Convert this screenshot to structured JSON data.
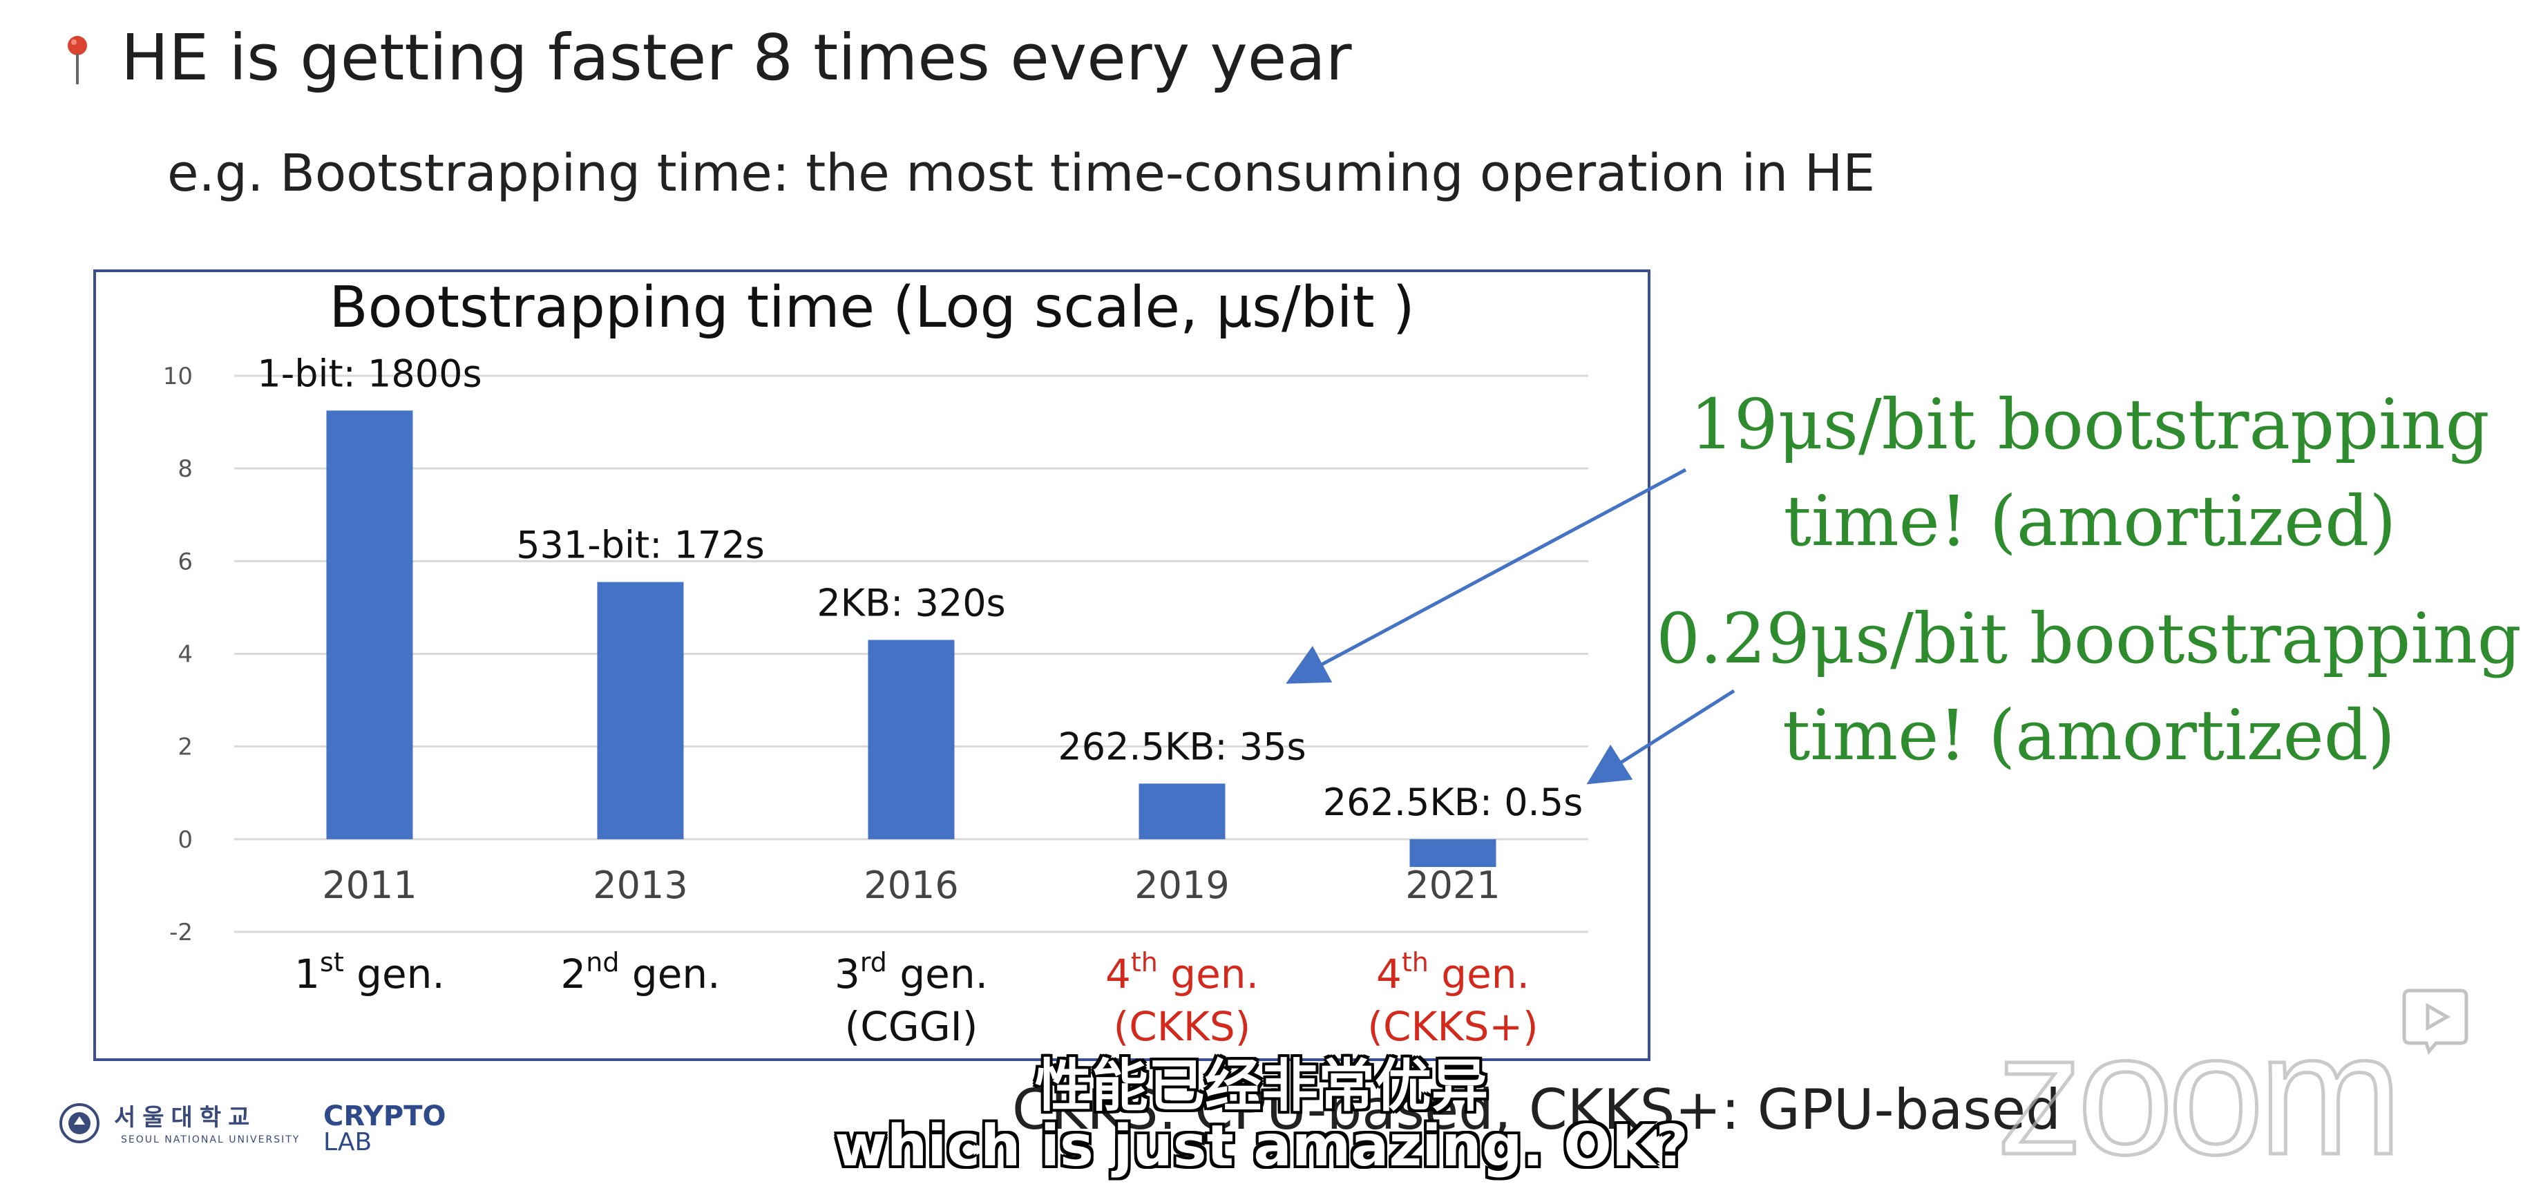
{
  "slide": {
    "heading": "HE is getting faster 8 times every year",
    "subheading": "e.g. Bootstrapping time: the most time-consuming operation in HE",
    "footer_note": "CKKS: CPU-based, CKKS+: GPU-based"
  },
  "annotations": {
    "first_line1": "19μs/bit bootstrapping",
    "first_line2": "time! (amortized)",
    "second_line1": "0.29μs/bit bootstrapping",
    "second_line2": "time! (amortized)"
  },
  "logos": {
    "university_korean": "서울대학교",
    "university_english": "SEOUL NATIONAL UNIVERSITY",
    "lab_line1": "CRYPTO",
    "lab_line2": "LAB",
    "zoom": "zoom"
  },
  "subtitles": {
    "chinese": "性能已经非常优异",
    "english": "which is just amazing. OK?"
  },
  "colors": {
    "bar": "#4472c4",
    "arrow": "#4472c4",
    "annotation_green": "#2e8b2e",
    "gen_red": "#d22b1e",
    "frame": "#3c4f8f"
  },
  "chart_data": {
    "type": "bar",
    "title": "Bootstrapping time (Log scale, μs/bit )",
    "categories": [
      "2011",
      "2013",
      "2016",
      "2019",
      "2021"
    ],
    "values": [
      9.25,
      5.55,
      4.3,
      1.2,
      -0.6
    ],
    "data_labels": [
      "1-bit: 1800s",
      "531-bit: 172s",
      "2KB: 320s",
      "262.5KB: 35s",
      "262.5KB: 0.5s"
    ],
    "generations": [
      {
        "main": "1",
        "sup": "st",
        "tail": " gen.",
        "line2": "",
        "color": "#111111"
      },
      {
        "main": "2",
        "sup": "nd",
        "tail": " gen.",
        "line2": "",
        "color": "#111111"
      },
      {
        "main": "3",
        "sup": "rd",
        "tail": " gen.",
        "line2": "(CGGI)",
        "color": "#111111"
      },
      {
        "main": "4",
        "sup": "th",
        "tail": " gen.",
        "line2": "(CKKS)",
        "color": "#d22b1e"
      },
      {
        "main": "4",
        "sup": "th",
        "tail": " gen.",
        "line2": "(CKKS+)",
        "color": "#d22b1e"
      }
    ],
    "yticks": [
      "10",
      "8",
      "6",
      "4",
      "2",
      "0",
      "-2"
    ],
    "ylim": [
      -2,
      10
    ],
    "grid": true,
    "log_scale": true
  }
}
